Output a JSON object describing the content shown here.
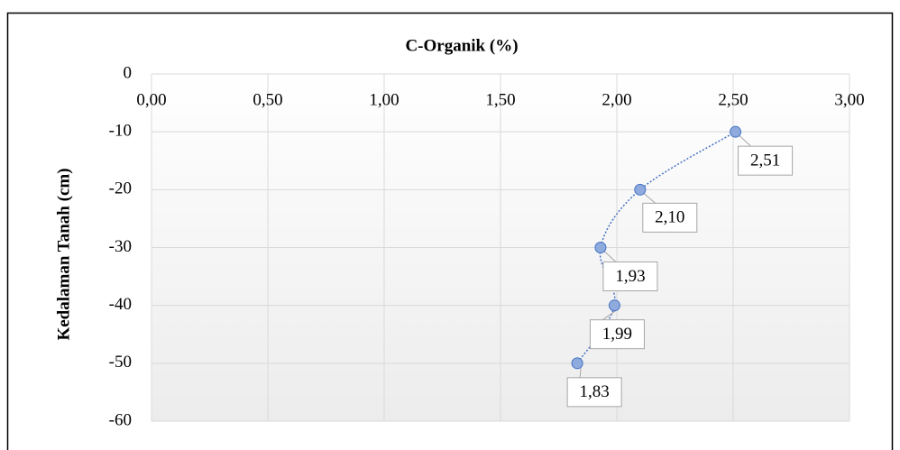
{
  "chart_data": {
    "type": "scatter",
    "title": "C-Organik (%)",
    "y_label": "Kedalaman Tanah (cm)",
    "x": [
      2.51,
      2.1,
      1.93,
      1.99,
      1.83
    ],
    "y": [
      -10,
      -20,
      -30,
      -40,
      -50
    ],
    "value_labels": [
      "2,51",
      "2,10",
      "1,93",
      "1,99",
      "1,83"
    ],
    "color": "#4472c4",
    "xlim": [
      0,
      3
    ],
    "xticks": [
      {
        "value": 0,
        "label": "0,00"
      },
      {
        "value": 0.5,
        "label": "0,50"
      },
      {
        "value": 1,
        "label": "1,00"
      },
      {
        "value": 1.5,
        "label": "1,50"
      },
      {
        "value": 2,
        "label": "2,00"
      },
      {
        "value": 2.5,
        "label": "2,50"
      },
      {
        "value": 3,
        "label": "3,00"
      }
    ],
    "ylim": [
      -60,
      0
    ],
    "yticks": [
      0,
      -10,
      -20,
      -30,
      -40,
      -50,
      -60
    ],
    "grid": true
  }
}
